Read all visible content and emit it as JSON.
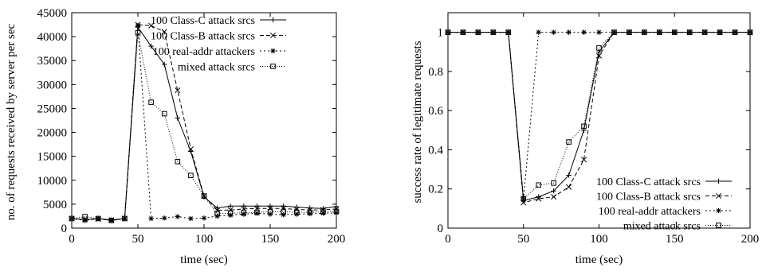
{
  "chart_data": [
    {
      "type": "line",
      "xlabel": "time (sec)",
      "ylabel": "no. of requests received by server per sec",
      "xlim": [
        0,
        200
      ],
      "ylim": [
        0,
        45000
      ],
      "xticks": [
        "0",
        "50",
        "100",
        "150",
        "200"
      ],
      "yticks": [
        "0",
        "5000",
        "10000",
        "15000",
        "20000",
        "25000",
        "30000",
        "35000",
        "40000",
        "45000"
      ],
      "grid": false,
      "legend_position": "top-right",
      "x": [
        0,
        10,
        20,
        30,
        40,
        50,
        60,
        70,
        80,
        90,
        100,
        110,
        120,
        130,
        140,
        150,
        160,
        170,
        180,
        190,
        200
      ],
      "series": [
        {
          "name": "100 Class-C attack srcs",
          "marker": "plus",
          "dash": "solid",
          "values": [
            2000,
            1800,
            2000,
            1700,
            2000,
            42000,
            38000,
            34200,
            23000,
            16000,
            6500,
            4200,
            4600,
            4600,
            4600,
            4600,
            4600,
            4400,
            4200,
            4100,
            4500
          ]
        },
        {
          "name": "100 Class-B attack srcs",
          "marker": "cross",
          "dash": "dashed",
          "values": [
            2000,
            1800,
            1900,
            1700,
            2000,
            42500,
            42300,
            41000,
            28800,
            16500,
            6700,
            3700,
            3800,
            4000,
            4100,
            4100,
            4100,
            3900,
            3800,
            3800,
            4000
          ]
        },
        {
          "name": "100 real-addr attackers",
          "marker": "star",
          "dash": "dotted",
          "values": [
            2000,
            1600,
            2000,
            1600,
            2000,
            42300,
            2000,
            2100,
            2400,
            2000,
            2100,
            2500,
            2700,
            2900,
            3100,
            2900,
            2800,
            2900,
            3000,
            3100,
            3200
          ]
        },
        {
          "name": "mixed attack srcs",
          "marker": "square",
          "dash": "finedot",
          "values": [
            2000,
            2400,
            2000,
            1600,
            2000,
            40800,
            26300,
            23900,
            13900,
            11000,
            6700,
            3000,
            3100,
            3200,
            3300,
            3400,
            3400,
            3300,
            3300,
            3400,
            3500
          ]
        }
      ]
    },
    {
      "type": "line",
      "xlabel": "time (sec)",
      "ylabel": "success rate of legitimate requests",
      "xlim": [
        0,
        200
      ],
      "ylim": [
        0,
        1.1
      ],
      "xticks": [
        "0",
        "50",
        "100",
        "150",
        "200"
      ],
      "yticks": [
        "0",
        "0.2",
        "0.4",
        "0.6",
        "0.8",
        "1"
      ],
      "grid": false,
      "legend_position": "bottom-right",
      "x": [
        0,
        10,
        20,
        30,
        40,
        50,
        60,
        70,
        80,
        90,
        100,
        110,
        120,
        130,
        140,
        150,
        160,
        170,
        180,
        190,
        200
      ],
      "series": [
        {
          "name": "100 Class-C attack srcs",
          "marker": "plus",
          "dash": "solid",
          "values": [
            1,
            1,
            1,
            1,
            1,
            0.14,
            0.16,
            0.19,
            0.27,
            0.5,
            0.9,
            1,
            1,
            1,
            1,
            1,
            1,
            1,
            1,
            1,
            1
          ]
        },
        {
          "name": "100 Class-B attack srcs",
          "marker": "cross",
          "dash": "dashed",
          "values": [
            1,
            1,
            1,
            1,
            1,
            0.13,
            0.15,
            0.16,
            0.21,
            0.35,
            0.88,
            1,
            1,
            1,
            1,
            1,
            1,
            1,
            1,
            1,
            1
          ]
        },
        {
          "name": "100 real-addr attackers",
          "marker": "star",
          "dash": "dotted",
          "values": [
            1,
            1,
            1,
            1,
            1,
            0.15,
            1,
            1,
            1,
            1,
            1,
            1,
            1,
            1,
            1,
            1,
            1,
            1,
            1,
            1,
            1
          ]
        },
        {
          "name": "mixed attack srcs",
          "marker": "square",
          "dash": "finedot",
          "values": [
            1,
            1,
            1,
            1,
            1,
            0.15,
            0.22,
            0.23,
            0.44,
            0.52,
            0.92,
            1,
            1,
            1,
            1,
            1,
            1,
            1,
            1,
            1,
            1
          ]
        }
      ]
    }
  ]
}
